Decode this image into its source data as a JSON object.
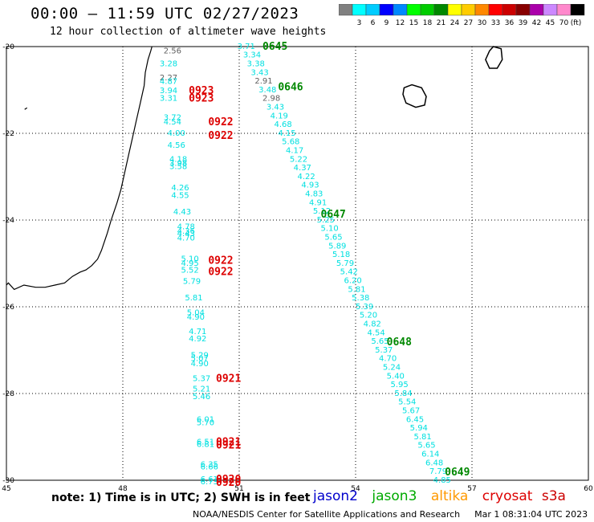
{
  "title": "00:00 – 11:59 UTC 02/27/2023",
  "subtitle": "12 hour collection of altimeter wave heights",
  "colorbar": {
    "unit": "(ft)",
    "colors": [
      "#808080",
      "#00ffff",
      "#00ccff",
      "#0000ff",
      "#0088ff",
      "#00ff00",
      "#00cc00",
      "#008800",
      "#ffff00",
      "#ffcc00",
      "#ff8800",
      "#ff0000",
      "#cc0000",
      "#880000",
      "#aa00aa",
      "#cc88ff",
      "#ff88cc",
      "#000000"
    ],
    "labels": [
      "3",
      "6",
      "9",
      "12",
      "15",
      "18",
      "21",
      "24",
      "27",
      "30",
      "33",
      "36",
      "39",
      "42",
      "45",
      "70"
    ]
  },
  "map": {
    "lon_range": [
      45,
      60
    ],
    "lat_range": [
      -30,
      -20
    ],
    "x_ticks": [
      "45",
      "48",
      "51",
      "54",
      "57",
      "60"
    ],
    "y_ticks": [
      "-20",
      "-22",
      "-24",
      "-26",
      "-28",
      "-30"
    ]
  },
  "tracks": [
    {
      "satellite": "jason3",
      "points": [
        {
          "lon": 50.95,
          "lat": -19.98,
          "v": "3.71",
          "c": "#00e0e0"
        },
        {
          "lon": 51.1,
          "lat": -20.18,
          "v": "3.34",
          "c": "#00e0e0"
        },
        {
          "lon": 51.2,
          "lat": -20.38,
          "v": "3.38",
          "c": "#00e0e0"
        },
        {
          "lon": 51.3,
          "lat": -20.58,
          "v": "3.43",
          "c": "#00e0e0"
        },
        {
          "lon": 51.4,
          "lat": -20.78,
          "v": "2.91",
          "c": "#606060"
        },
        {
          "lon": 51.5,
          "lat": -20.98,
          "v": "3.48",
          "c": "#00e0e0"
        },
        {
          "lon": 51.6,
          "lat": -21.18,
          "v": "2.98",
          "c": "#606060"
        },
        {
          "lon": 51.7,
          "lat": -21.38,
          "v": "3.43",
          "c": "#00e0e0"
        },
        {
          "lon": 51.8,
          "lat": -21.58,
          "v": "4.19",
          "c": "#00e0e0"
        },
        {
          "lon": 51.9,
          "lat": -21.78,
          "v": "4.68",
          "c": "#00e0e0"
        },
        {
          "lon": 52.0,
          "lat": -21.98,
          "v": "4.15",
          "c": "#00e0e0"
        },
        {
          "lon": 52.1,
          "lat": -22.18,
          "v": "5.68",
          "c": "#00e0e0"
        },
        {
          "lon": 52.2,
          "lat": -22.38,
          "v": "4.17",
          "c": "#00e0e0"
        },
        {
          "lon": 52.3,
          "lat": -22.58,
          "v": "5.22",
          "c": "#00e0e0"
        },
        {
          "lon": 52.4,
          "lat": -22.78,
          "v": "4.37",
          "c": "#00e0e0"
        },
        {
          "lon": 52.5,
          "lat": -22.98,
          "v": "4.22",
          "c": "#00e0e0"
        },
        {
          "lon": 52.6,
          "lat": -23.18,
          "v": "4.93",
          "c": "#00e0e0"
        },
        {
          "lon": 52.7,
          "lat": -23.38,
          "v": "4.83",
          "c": "#00e0e0"
        },
        {
          "lon": 52.8,
          "lat": -23.58,
          "v": "4.91",
          "c": "#00e0e0"
        },
        {
          "lon": 52.9,
          "lat": -23.78,
          "v": "5.12",
          "c": "#00e0e0"
        },
        {
          "lon": 53.0,
          "lat": -23.98,
          "v": "5.25",
          "c": "#00e0e0"
        },
        {
          "lon": 53.1,
          "lat": -24.18,
          "v": "5.10",
          "c": "#00e0e0"
        },
        {
          "lon": 53.2,
          "lat": -24.38,
          "v": "5.65",
          "c": "#00e0e0"
        },
        {
          "lon": 53.3,
          "lat": -24.58,
          "v": "5.89",
          "c": "#00e0e0"
        },
        {
          "lon": 53.4,
          "lat": -24.78,
          "v": "5.18",
          "c": "#00e0e0"
        },
        {
          "lon": 53.5,
          "lat": -24.98,
          "v": "5.79",
          "c": "#00e0e0"
        },
        {
          "lon": 53.6,
          "lat": -25.18,
          "v": "5.42",
          "c": "#00e0e0"
        },
        {
          "lon": 53.7,
          "lat": -25.38,
          "v": "6.20",
          "c": "#00e0e0"
        },
        {
          "lon": 53.8,
          "lat": -25.58,
          "v": "5.81",
          "c": "#00e0e0"
        },
        {
          "lon": 53.9,
          "lat": -25.78,
          "v": "5.38",
          "c": "#00e0e0"
        },
        {
          "lon": 54.0,
          "lat": -25.98,
          "v": "5.39",
          "c": "#00e0e0"
        },
        {
          "lon": 54.1,
          "lat": -26.18,
          "v": "5.20",
          "c": "#00e0e0"
        },
        {
          "lon": 54.2,
          "lat": -26.38,
          "v": "4.82",
          "c": "#00e0e0"
        },
        {
          "lon": 54.3,
          "lat": -26.58,
          "v": "4.54",
          "c": "#00e0e0"
        },
        {
          "lon": 54.4,
          "lat": -26.78,
          "v": "5.65",
          "c": "#00e0e0"
        },
        {
          "lon": 54.5,
          "lat": -26.98,
          "v": "5.37",
          "c": "#00e0e0"
        },
        {
          "lon": 54.6,
          "lat": -27.18,
          "v": "4.70",
          "c": "#00e0e0"
        },
        {
          "lon": 54.7,
          "lat": -27.38,
          "v": "5.24",
          "c": "#00e0e0"
        },
        {
          "lon": 54.8,
          "lat": -27.58,
          "v": "5.40",
          "c": "#00e0e0"
        },
        {
          "lon": 54.9,
          "lat": -27.78,
          "v": "5.95",
          "c": "#00e0e0"
        },
        {
          "lon": 55.0,
          "lat": -27.98,
          "v": "5.84",
          "c": "#00e0e0"
        },
        {
          "lon": 55.1,
          "lat": -28.18,
          "v": "5.54",
          "c": "#00e0e0"
        },
        {
          "lon": 55.2,
          "lat": -28.38,
          "v": "5.67",
          "c": "#00e0e0"
        },
        {
          "lon": 55.3,
          "lat": -28.58,
          "v": "6.45",
          "c": "#00e0e0"
        },
        {
          "lon": 55.4,
          "lat": -28.78,
          "v": "5.94",
          "c": "#00e0e0"
        },
        {
          "lon": 55.5,
          "lat": -28.98,
          "v": "5.81",
          "c": "#00e0e0"
        },
        {
          "lon": 55.6,
          "lat": -29.18,
          "v": "5.65",
          "c": "#00e0e0"
        },
        {
          "lon": 55.7,
          "lat": -29.38,
          "v": "6.14",
          "c": "#00e0e0"
        },
        {
          "lon": 55.8,
          "lat": -29.58,
          "v": "6.48",
          "c": "#00e0e0"
        },
        {
          "lon": 55.9,
          "lat": -29.78,
          "v": "7.79",
          "c": "#00e0e0"
        },
        {
          "lon": 56.0,
          "lat": -29.98,
          "v": "4.85",
          "c": "#00e0e0"
        }
      ],
      "times": [
        {
          "lon": 51.6,
          "lat": -19.98,
          "t": "0645"
        },
        {
          "lon": 52.0,
          "lat": -20.92,
          "t": "0646"
        },
        {
          "lon": 53.1,
          "lat": -23.85,
          "t": "0647"
        },
        {
          "lon": 54.8,
          "lat": -26.8,
          "t": "0648"
        },
        {
          "lon": 56.3,
          "lat": -29.8,
          "t": "0649"
        }
      ]
    },
    {
      "satellite": "cryosat",
      "points": [
        {
          "lon": 49.05,
          "lat": -20.08,
          "v": "2.56",
          "c": "#606060"
        },
        {
          "lon": 48.95,
          "lat": -20.38,
          "v": "3.28",
          "c": "#00e0e0"
        },
        {
          "lon": 48.95,
          "lat": -20.7,
          "v": "2.27",
          "c": "#606060"
        },
        {
          "lon": 48.95,
          "lat": -20.79,
          "v": "4.87",
          "c": "#00e0e0"
        },
        {
          "lon": 48.95,
          "lat": -21.0,
          "v": "3.94",
          "c": "#00e0e0"
        },
        {
          "lon": 48.95,
          "lat": -21.18,
          "v": "3.31",
          "c": "#00e0e0"
        },
        {
          "lon": 49.05,
          "lat": -21.62,
          "v": "3.72",
          "c": "#00e0e0"
        },
        {
          "lon": 49.05,
          "lat": -21.72,
          "v": "4.54",
          "c": "#00e0e0"
        },
        {
          "lon": 49.15,
          "lat": -21.98,
          "v": "4.00",
          "c": "#00e0e0"
        },
        {
          "lon": 49.15,
          "lat": -22.26,
          "v": "4.56",
          "c": "#00e0e0"
        },
        {
          "lon": 49.2,
          "lat": -22.58,
          "v": "4.18",
          "c": "#00e0e0"
        },
        {
          "lon": 49.2,
          "lat": -22.68,
          "v": "3.98",
          "c": "#00e0e0"
        },
        {
          "lon": 49.2,
          "lat": -22.75,
          "v": "3.58",
          "c": "#00e0e0"
        },
        {
          "lon": 49.25,
          "lat": -23.24,
          "v": "4.26",
          "c": "#00e0e0"
        },
        {
          "lon": 49.25,
          "lat": -23.42,
          "v": "4.55",
          "c": "#00e0e0"
        },
        {
          "lon": 49.3,
          "lat": -23.8,
          "v": "4.43",
          "c": "#00e0e0"
        },
        {
          "lon": 49.4,
          "lat": -24.14,
          "v": "4.78",
          "c": "#00e0e0"
        },
        {
          "lon": 49.4,
          "lat": -24.24,
          "v": "4.36",
          "c": "#00e0e0"
        },
        {
          "lon": 49.4,
          "lat": -24.3,
          "v": "4.43",
          "c": "#00e0e0"
        },
        {
          "lon": 49.4,
          "lat": -24.4,
          "v": "4.70",
          "c": "#00e0e0"
        },
        {
          "lon": 49.5,
          "lat": -24.88,
          "v": "5.10",
          "c": "#00e0e0"
        },
        {
          "lon": 49.5,
          "lat": -24.98,
          "v": "4.95",
          "c": "#00e0e0"
        },
        {
          "lon": 49.5,
          "lat": -25.14,
          "v": "5.52",
          "c": "#00e0e0"
        },
        {
          "lon": 49.55,
          "lat": -25.4,
          "v": "5.79",
          "c": "#00e0e0"
        },
        {
          "lon": 49.6,
          "lat": -25.78,
          "v": "5.81",
          "c": "#00e0e0"
        },
        {
          "lon": 49.65,
          "lat": -26.12,
          "v": "5.04",
          "c": "#00e0e0"
        },
        {
          "lon": 49.65,
          "lat": -26.22,
          "v": "4.90",
          "c": "#00e0e0"
        },
        {
          "lon": 49.7,
          "lat": -26.56,
          "v": "4.71",
          "c": "#00e0e0"
        },
        {
          "lon": 49.7,
          "lat": -26.72,
          "v": "4.92",
          "c": "#00e0e0"
        },
        {
          "lon": 49.75,
          "lat": -27.1,
          "v": "5.29",
          "c": "#00e0e0"
        },
        {
          "lon": 49.75,
          "lat": -27.18,
          "v": "5.07",
          "c": "#00e0e0"
        },
        {
          "lon": 49.75,
          "lat": -27.3,
          "v": "4.90",
          "c": "#00e0e0"
        },
        {
          "lon": 49.8,
          "lat": -27.64,
          "v": "5.37",
          "c": "#00e0e0"
        },
        {
          "lon": 49.8,
          "lat": -27.88,
          "v": "5.21",
          "c": "#00e0e0"
        },
        {
          "lon": 49.8,
          "lat": -28.06,
          "v": "5.46",
          "c": "#00e0e0"
        },
        {
          "lon": 49.9,
          "lat": -28.58,
          "v": "6.01",
          "c": "#00e0e0"
        },
        {
          "lon": 49.9,
          "lat": -28.66,
          "v": "5.70",
          "c": "#00e0e0"
        },
        {
          "lon": 49.9,
          "lat": -29.1,
          "v": "6.51",
          "c": "#00e0e0"
        },
        {
          "lon": 49.9,
          "lat": -29.16,
          "v": "6.81",
          "c": "#00e0e0"
        },
        {
          "lon": 50.0,
          "lat": -29.62,
          "v": "6.35",
          "c": "#00e0e0"
        },
        {
          "lon": 50.0,
          "lat": -29.68,
          "v": "6.66",
          "c": "#00e0e0"
        },
        {
          "lon": 50.0,
          "lat": -29.96,
          "v": "6.61",
          "c": "#00e0e0"
        },
        {
          "lon": 50.0,
          "lat": -30.02,
          "v": "6.73",
          "c": "#00e0e0"
        }
      ],
      "times": [
        {
          "lon": 49.7,
          "lat": -21.0,
          "t": "0923"
        },
        {
          "lon": 49.7,
          "lat": -21.18,
          "t": "0923"
        },
        {
          "lon": 50.2,
          "lat": -21.72,
          "t": "0922"
        },
        {
          "lon": 50.2,
          "lat": -22.04,
          "t": "0922"
        },
        {
          "lon": 50.2,
          "lat": -24.92,
          "t": "0922"
        },
        {
          "lon": 50.2,
          "lat": -25.18,
          "t": "0922"
        },
        {
          "lon": 50.4,
          "lat": -27.64,
          "t": "0921"
        },
        {
          "lon": 50.4,
          "lat": -29.1,
          "t": "0921"
        },
        {
          "lon": 50.4,
          "lat": -29.18,
          "t": "0921"
        },
        {
          "lon": 50.4,
          "lat": -29.96,
          "t": "0920"
        },
        {
          "lon": 50.4,
          "lat": -30.04,
          "t": "0920"
        }
      ]
    }
  ],
  "note": "note: 1) Time is in UTC; 2) SWH is in feet",
  "satellites": [
    {
      "name": "jason2",
      "color": "#0000cc"
    },
    {
      "name": "jason3",
      "color": "#00aa00"
    },
    {
      "name": "altika",
      "color": "#ff9900"
    },
    {
      "name": "cryosat",
      "color": "#dd0000"
    },
    {
      "name": "s3a",
      "color": "#cc0000"
    }
  ],
  "footer": {
    "org": "NOAA/NESDIS Center for Satellite Applications and Research",
    "timestamp": "Mar  1 08:31:04 UTC 2023"
  }
}
